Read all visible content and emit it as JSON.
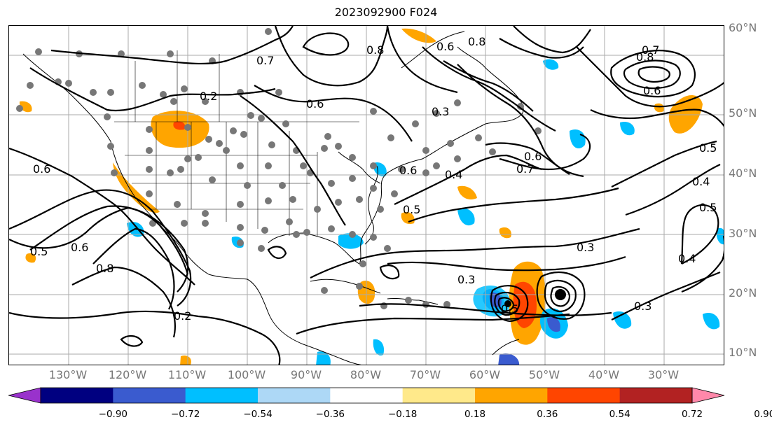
{
  "title": "2023092900 F024",
  "lat_labels": [
    "60°N",
    "50°N",
    "40°N",
    "30°N",
    "20°N",
    "10°N"
  ],
  "lon_labels": [
    "130°W",
    "120°W",
    "110°W",
    "100°W",
    "90°W",
    "80°W",
    "70°W",
    "60°W",
    "50°W",
    "40°W",
    "30°W"
  ],
  "colorbar": {
    "colors": [
      "#9932CC",
      "#000080",
      "#3A5BCF",
      "#00BFFF",
      "#ADD8F6",
      "#FFFFFF",
      "#FFE98A",
      "#FFA500",
      "#FF4500",
      "#B22222",
      "#FF88AA"
    ],
    "tick_labels": [
      "−0.90",
      "−0.72",
      "−0.54",
      "−0.36",
      "−0.18",
      "0.18",
      "0.36",
      "0.54",
      "0.72",
      "0.90"
    ]
  },
  "contour_labels": [
    {
      "text": "0.2"
    },
    {
      "text": "0.6"
    },
    {
      "text": "0.8"
    },
    {
      "text": "0.6"
    },
    {
      "text": "0.7"
    },
    {
      "text": "0.8"
    },
    {
      "text": "0.7"
    },
    {
      "text": "0.6"
    },
    {
      "text": "0.3"
    },
    {
      "text": "0.6"
    },
    {
      "text": "0.4"
    },
    {
      "text": "0.5"
    },
    {
      "text": "0.6"
    },
    {
      "text": "0.7"
    },
    {
      "text": "0.5"
    },
    {
      "text": "0.6"
    },
    {
      "text": "0.8"
    },
    {
      "text": "0.2"
    },
    {
      "text": "0.3"
    },
    {
      "text": "0.3"
    },
    {
      "text": "0.3"
    },
    {
      "text": "0.4"
    },
    {
      "text": "0.4"
    },
    {
      "text": "0.5"
    },
    {
      "text": "0.6"
    },
    {
      "text": "0.5"
    },
    {
      "text": "0.5"
    },
    {
      "text": "0.8"
    }
  ]
}
